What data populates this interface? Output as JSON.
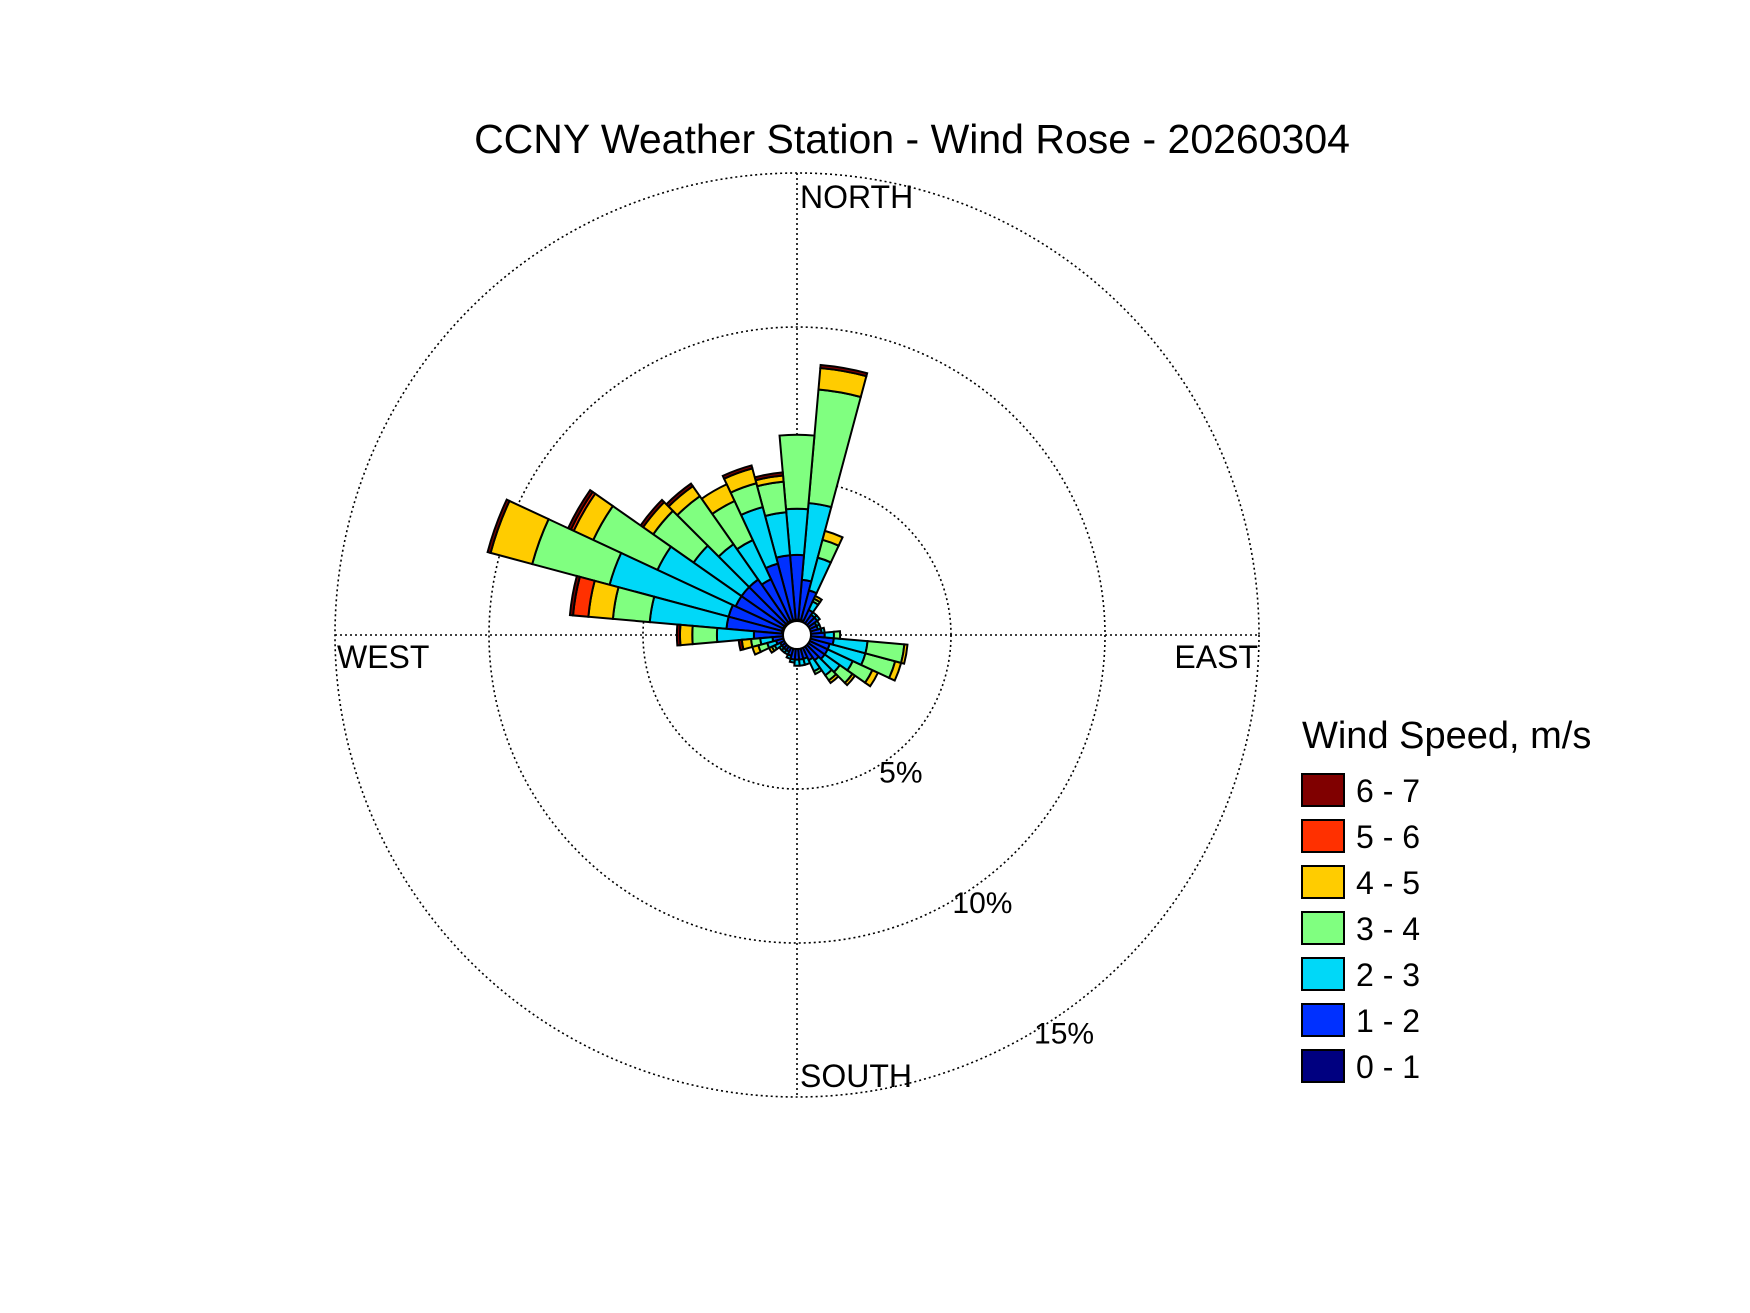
{
  "chart_data": {
    "type": "wind_rose",
    "title": "CCNY Weather Station - Wind Rose - 20260304",
    "direction_labels": {
      "north": "NORTH",
      "east": "EAST",
      "south": "SOUTH",
      "west": "WEST"
    },
    "radial_axis": {
      "unit": "%",
      "max": 15,
      "rings": [
        5,
        10,
        15
      ],
      "ring_labels": [
        "5%",
        "10%",
        "15%"
      ]
    },
    "sector_width_deg": 10,
    "legend": {
      "title": "Wind Speed, m/s",
      "placement": "right",
      "bins": [
        {
          "label": "6 - 7",
          "color": "#800000"
        },
        {
          "label": "5 - 6",
          "color": "#ff3000"
        },
        {
          "label": "4 - 5",
          "color": "#ffcc00"
        },
        {
          "label": "3 - 4",
          "color": "#80ff80"
        },
        {
          "label": "2 - 3",
          "color": "#00d8f8"
        },
        {
          "label": "1 - 2",
          "color": "#0030ff"
        },
        {
          "label": "0 - 1",
          "color": "#000080"
        }
      ]
    },
    "bin_order_inner_to_outer": [
      "0 - 1",
      "1 - 2",
      "2 - 3",
      "3 - 4",
      "4 - 5",
      "5 - 6",
      "6 - 7"
    ],
    "sectors": [
      {
        "dir": 10,
        "cumulative": [
          0.5,
          1.8,
          4.3,
          8.0,
          8.7,
          8.7,
          8.8
        ]
      },
      {
        "dir": 0,
        "cumulative": [
          0.5,
          2.6,
          4.1,
          6.5,
          6.5,
          6.5,
          6.5
        ]
      },
      {
        "dir": 20,
        "cumulative": [
          0.5,
          1.5,
          2.6,
          3.2,
          3.5,
          3.5,
          3.5
        ]
      },
      {
        "dir": 30,
        "cumulative": [
          0.4,
          0.9,
          1.2,
          1.3,
          1.4,
          1.4,
          1.4
        ]
      },
      {
        "dir": 350,
        "cumulative": [
          0.5,
          2.6,
          4.0,
          5.0,
          5.2,
          5.2,
          5.3
        ]
      },
      {
        "dir": 340,
        "cumulative": [
          0.5,
          2.4,
          4.3,
          5.1,
          5.6,
          5.6,
          5.7
        ]
      },
      {
        "dir": 330,
        "cumulative": [
          0.5,
          2.0,
          3.4,
          4.8,
          5.4,
          5.4,
          5.4
        ]
      },
      {
        "dir": 320,
        "cumulative": [
          0.5,
          2.2,
          3.6,
          5.5,
          5.9,
          5.9,
          6.0
        ]
      },
      {
        "dir": 310,
        "cumulative": [
          0.5,
          2.2,
          4.1,
          5.7,
          6.1,
          6.1,
          6.2
        ]
      },
      {
        "dir": 300,
        "cumulative": [
          0.5,
          2.2,
          5.0,
          7.3,
          8.0,
          8.1,
          8.2
        ]
      },
      {
        "dir": 290,
        "cumulative": [
          0.5,
          2.3,
          6.3,
          8.9,
          10.3,
          10.3,
          10.4
        ]
      },
      {
        "dir": 280,
        "cumulative": [
          0.5,
          2.3,
          4.8,
          6.0,
          6.8,
          7.3,
          7.4
        ]
      },
      {
        "dir": 270,
        "cumulative": [
          0.4,
          1.4,
          2.6,
          3.4,
          3.8,
          3.8,
          3.9
        ]
      },
      {
        "dir": 260,
        "cumulative": [
          0.4,
          0.8,
          1.2,
          1.5,
          1.8,
          1.8,
          1.9
        ]
      },
      {
        "dir": 250,
        "cumulative": [
          0.4,
          0.7,
          1.0,
          1.3,
          1.5,
          1.5,
          1.5
        ]
      },
      {
        "dir": 240,
        "cumulative": [
          0.4,
          0.6,
          0.8,
          0.9,
          1.0,
          1.0,
          1.0
        ]
      },
      {
        "dir": 230,
        "cumulative": [
          0.4,
          0.6,
          0.7,
          0.7,
          0.7,
          0.7,
          0.7
        ]
      },
      {
        "dir": 220,
        "cumulative": [
          0.4,
          0.6,
          0.7,
          0.7,
          0.7,
          0.7,
          0.7
        ]
      },
      {
        "dir": 210,
        "cumulative": [
          0.4,
          0.6,
          0.7,
          0.7,
          0.7,
          0.7,
          0.7
        ]
      },
      {
        "dir": 200,
        "cumulative": [
          0.4,
          0.7,
          0.8,
          0.8,
          0.8,
          0.8,
          0.8
        ]
      },
      {
        "dir": 190,
        "cumulative": [
          0.4,
          0.8,
          0.9,
          0.9,
          0.9,
          0.9,
          0.9
        ]
      },
      {
        "dir": 180,
        "cumulative": [
          0.4,
          0.8,
          1.0,
          1.0,
          1.0,
          1.0,
          1.0
        ]
      },
      {
        "dir": 170,
        "cumulative": [
          0.4,
          0.8,
          1.0,
          1.0,
          1.0,
          1.0,
          1.0
        ]
      },
      {
        "dir": 160,
        "cumulative": [
          0.4,
          0.8,
          1.0,
          1.0,
          1.0,
          1.0,
          1.0
        ]
      },
      {
        "dir": 150,
        "cumulative": [
          0.4,
          0.9,
          1.3,
          1.4,
          1.4,
          1.4,
          1.4
        ]
      },
      {
        "dir": 140,
        "cumulative": [
          0.4,
          1.0,
          1.6,
          1.8,
          1.9,
          1.9,
          1.9
        ]
      },
      {
        "dir": 130,
        "cumulative": [
          0.4,
          1.1,
          1.7,
          2.2,
          2.3,
          2.3,
          2.3
        ]
      },
      {
        "dir": 120,
        "cumulative": [
          0.4,
          1.1,
          2.0,
          2.7,
          2.9,
          2.9,
          2.9
        ]
      },
      {
        "dir": 110,
        "cumulative": [
          0.4,
          1.1,
          2.3,
          3.3,
          3.5,
          3.5,
          3.5
        ]
      },
      {
        "dir": 100,
        "cumulative": [
          0.4,
          1.2,
          2.3,
          3.5,
          3.6,
          3.6,
          3.6
        ]
      },
      {
        "dir": 90,
        "cumulative": [
          0.4,
          0.9,
          1.2,
          1.4,
          1.4,
          1.4,
          1.4
        ]
      },
      {
        "dir": 80,
        "cumulative": [
          0.4,
          0.8,
          0.9,
          0.9,
          0.9,
          0.9,
          0.9
        ]
      },
      {
        "dir": 70,
        "cumulative": [
          0.4,
          0.7,
          0.8,
          0.8,
          0.8,
          0.8,
          0.8
        ]
      },
      {
        "dir": 60,
        "cumulative": [
          0.4,
          0.7,
          0.8,
          0.8,
          0.8,
          0.8,
          0.8
        ]
      },
      {
        "dir": 50,
        "cumulative": [
          0.4,
          0.8,
          0.9,
          0.9,
          0.9,
          0.9,
          0.9
        ]
      },
      {
        "dir": 40,
        "cumulative": [
          0.4,
          0.8,
          0.9,
          0.9,
          0.9,
          0.9,
          0.9
        ]
      }
    ]
  }
}
